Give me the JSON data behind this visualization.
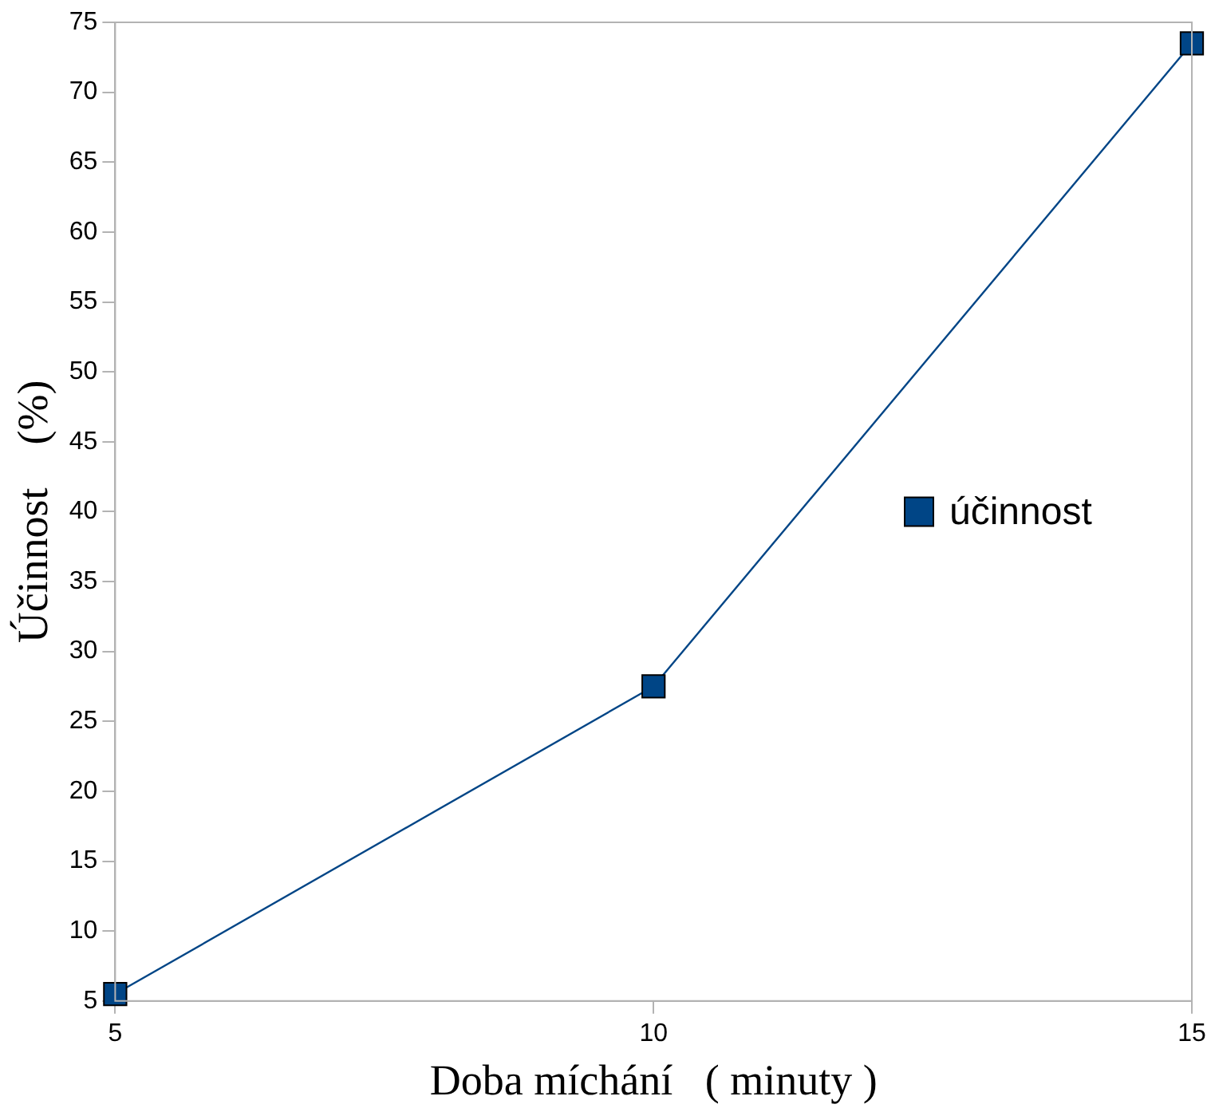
{
  "chart_data": {
    "type": "line",
    "xlabel": "Doba míchání   ( minuty )",
    "ylabel": "Účinnost    (%)",
    "x": [
      5,
      10,
      15
    ],
    "series": [
      {
        "name": "účinnost",
        "color": "#004586",
        "values": [
          5.5,
          27.5,
          73.5
        ]
      }
    ],
    "xlim": [
      5,
      15
    ],
    "xticks": [
      5,
      10,
      15
    ],
    "ylim": [
      5,
      75
    ],
    "yticks": [
      5,
      10,
      15,
      20,
      25,
      30,
      35,
      40,
      45,
      50,
      55,
      60,
      65,
      70,
      75
    ],
    "grid": false,
    "legend": "right",
    "marker": "square",
    "line_style": "solid"
  }
}
